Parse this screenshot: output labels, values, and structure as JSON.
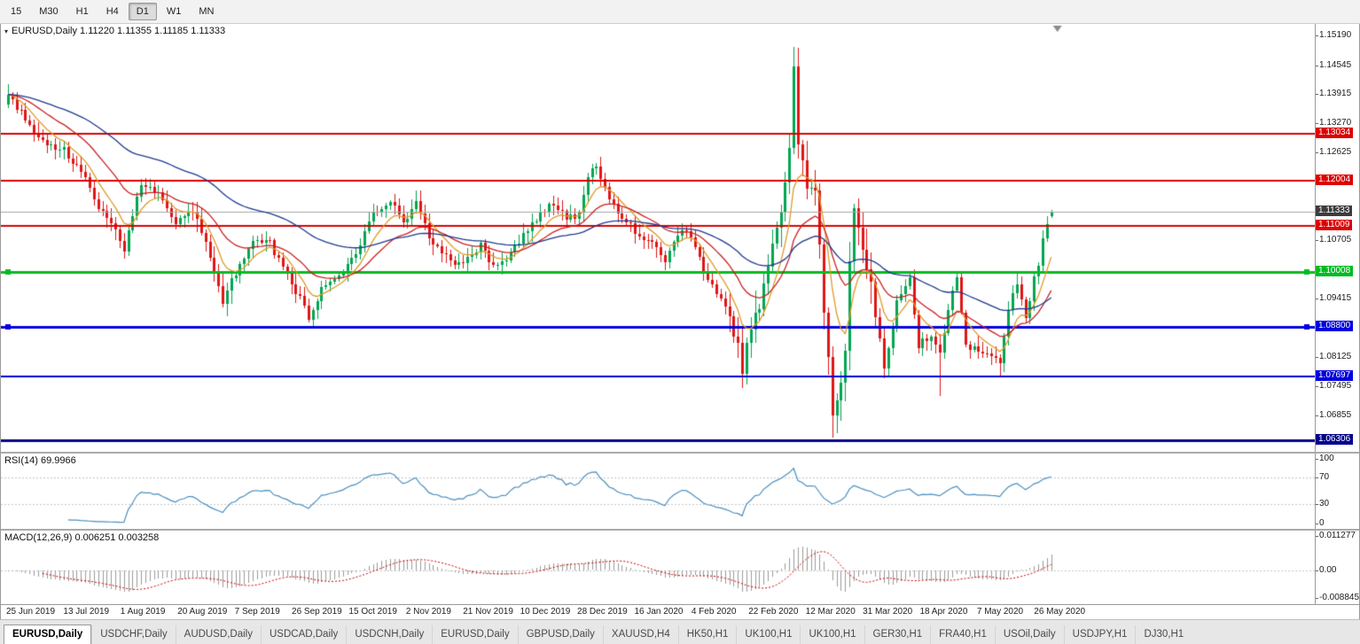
{
  "toolbar": {
    "timeframes": [
      "15",
      "M30",
      "H1",
      "H4",
      "D1",
      "W1",
      "MN"
    ],
    "active": "D1"
  },
  "main": {
    "title_text": "EURUSD,Daily 1.11220 1.11355 1.11185 1.11333"
  },
  "rsi_panel": {
    "label_text": "RSI(14) 69.9966"
  },
  "macd_panel": {
    "label_text": "MACD(12,26,9) 0.006251 0.003258"
  },
  "bottom_tabs": [
    "EURUSD,Daily",
    "USDCHF,Daily",
    "AUDUSD,Daily",
    "USDCAD,Daily",
    "USDCNH,Daily",
    "EURUSD,Daily",
    "GBPUSD,Daily",
    "XAUUSD,H4",
    "HK50,H1",
    "UK100,H1",
    "UK100,H1",
    "GER30,H1",
    "FRA40,H1",
    "USOil,Daily",
    "USDJPY,H1",
    "DJ30,H1"
  ],
  "active_tab_index": 0,
  "chart_data": {
    "type": "candlestick",
    "symbol": "EURUSD",
    "period": "Daily",
    "current_ohlc": {
      "open": 1.1122,
      "high": 1.11355,
      "low": 1.11185,
      "close": 1.11333
    },
    "candle_count": 244,
    "y_range": [
      1.0605,
      1.1545
    ],
    "y_ticks": [
      "1.15190",
      "1.14545",
      "1.13915",
      "1.13270",
      "1.12625",
      "1.10705",
      "1.09415",
      "1.08125",
      "1.07495",
      "1.06855"
    ],
    "x_labels": [
      "25 Jun 2019",
      "13 Jul 2019",
      "1 Aug 2019",
      "20 Aug 2019",
      "7 Sep 2019",
      "26 Sep 2019",
      "15 Oct 2019",
      "2 Nov 2019",
      "21 Nov 2019",
      "10 Dec 2019",
      "28 Dec 2019",
      "16 Jan 2020",
      "4 Feb 2020",
      "22 Feb 2020",
      "12 Mar 2020",
      "31 Mar 2020",
      "18 Apr 2020",
      "7 May 2020",
      "26 May 2020"
    ],
    "up_color": "#00a550",
    "down_color": "#e01515",
    "close_anchors": [
      [
        0,
        1.139
      ],
      [
        4,
        1.1335
      ],
      [
        9,
        1.1278
      ],
      [
        13,
        1.1268
      ],
      [
        17,
        1.1222
      ],
      [
        21,
        1.1145
      ],
      [
        26,
        1.1075
      ],
      [
        27,
        1.1048
      ],
      [
        29,
        1.112
      ],
      [
        31,
        1.1198
      ],
      [
        35,
        1.1172
      ],
      [
        39,
        1.1108
      ],
      [
        43,
        1.1138
      ],
      [
        47,
        1.1042
      ],
      [
        50,
        1.0936
      ],
      [
        53,
        1.1
      ],
      [
        57,
        1.1068
      ],
      [
        61,
        1.1062
      ],
      [
        65,
        1.0992
      ],
      [
        68,
        1.0942
      ],
      [
        70,
        1.0902
      ],
      [
        73,
        1.0962
      ],
      [
        77,
        1.0986
      ],
      [
        81,
        1.104
      ],
      [
        85,
        1.1134
      ],
      [
        89,
        1.1156
      ],
      [
        92,
        1.1112
      ],
      [
        95,
        1.115
      ],
      [
        98,
        1.1076
      ],
      [
        102,
        1.1032
      ],
      [
        106,
        1.1016
      ],
      [
        110,
        1.1058
      ],
      [
        113,
        1.1012
      ],
      [
        116,
        1.1026
      ],
      [
        120,
        1.1082
      ],
      [
        124,
        1.113
      ],
      [
        127,
        1.1152
      ],
      [
        130,
        1.1118
      ],
      [
        133,
        1.1122
      ],
      [
        135,
        1.1208
      ],
      [
        137,
        1.1236
      ],
      [
        140,
        1.1162
      ],
      [
        143,
        1.1122
      ],
      [
        146,
        1.109
      ],
      [
        150,
        1.106
      ],
      [
        153,
        1.1023
      ],
      [
        157,
        1.1094
      ],
      [
        160,
        1.106
      ],
      [
        163,
        1.098
      ],
      [
        166,
        1.0945
      ],
      [
        169,
        1.0872
      ],
      [
        171,
        1.0786
      ],
      [
        172,
        1.0846
      ],
      [
        175,
        1.092
      ],
      [
        177,
        1.1027
      ],
      [
        180,
        1.1138
      ],
      [
        182,
        1.1284
      ],
      [
        183,
        1.145
      ],
      [
        184,
        1.1281
      ],
      [
        186,
        1.1184
      ],
      [
        188,
        1.118
      ],
      [
        190,
        1.0917
      ],
      [
        192,
        1.069
      ],
      [
        193,
        1.0727
      ],
      [
        195,
        1.082
      ],
      [
        196,
        1.103
      ],
      [
        197,
        1.114
      ],
      [
        199,
        1.1048
      ],
      [
        201,
        1.0964
      ],
      [
        204,
        1.0791
      ],
      [
        207,
        1.093
      ],
      [
        210,
        1.098
      ],
      [
        212,
        1.084
      ],
      [
        215,
        1.0858
      ],
      [
        217,
        1.0821
      ],
      [
        220,
        1.0955
      ],
      [
        221,
        1.098
      ],
      [
        223,
        1.0838
      ],
      [
        225,
        1.0834
      ],
      [
        228,
        1.0818
      ],
      [
        231,
        1.0802
      ],
      [
        233,
        1.0913
      ],
      [
        235,
        1.098
      ],
      [
        237,
        1.09
      ],
      [
        239,
        1.0983
      ],
      [
        240,
        1.1006
      ],
      [
        241,
        1.1077
      ],
      [
        242,
        1.1101
      ],
      [
        243,
        1.11333
      ]
    ],
    "special_wicks": {
      "0": {
        "high": 1.1412
      },
      "137": {
        "high": 1.124
      },
      "183": {
        "high": 1.1495
      },
      "192": {
        "low": 1.0636
      },
      "217": {
        "low": 1.0727
      },
      "231": {
        "low": 1.0767
      }
    },
    "horizontal_levels": [
      {
        "label": "1.13034",
        "price": 1.13034,
        "color": "#dd0000",
        "width": 2
      },
      {
        "label": "1.12004",
        "price": 1.12004,
        "color": "#dd0000",
        "width": 2
      },
      {
        "label": "1.11333",
        "price": 1.11333,
        "color": "#a8a8a8",
        "badge_color": "#3c3c3c",
        "width": 1,
        "current": true
      },
      {
        "label": "1.11009",
        "price": 1.11009,
        "color": "#dd0000",
        "width": 2
      },
      {
        "label": "1.10008",
        "price": 1.10008,
        "color": "#00bb22",
        "width": 3,
        "handles": true
      },
      {
        "label": "1.08800",
        "price": 1.088,
        "color": "#0000dd",
        "width": 3,
        "handles": true
      },
      {
        "label": "1.07697",
        "price": 1.07697,
        "color": "#0000dd",
        "width": 2
      },
      {
        "label": "1.06306",
        "price": 1.06306,
        "color": "#00008b",
        "width": 3
      }
    ],
    "moving_averages": [
      {
        "period": 8,
        "color": "#e09a28"
      },
      {
        "period": 21,
        "color": "#cc2020"
      },
      {
        "period": 55,
        "color": "#1e3a8f"
      }
    ],
    "indicators": {
      "rsi": {
        "name": "RSI",
        "period": 14,
        "value": 69.9966,
        "color": "#4a8fc0",
        "levels": [
          {
            "label": "100",
            "value": 100
          },
          {
            "label": "70",
            "value": 70
          },
          {
            "label": "30",
            "value": 30
          },
          {
            "label": "0",
            "value": 0
          }
        ],
        "guide_levels": [
          70,
          30
        ]
      },
      "macd": {
        "name": "MACD",
        "params": "12,26,9",
        "macd_value": 0.006251,
        "signal_value": 0.003258,
        "histogram_color": "#9b9b9b",
        "signal_color": "#cc0000",
        "range": [
          -0.008845,
          0.011277
        ],
        "scale": [
          {
            "label": "0.011277",
            "value": 0.011277
          },
          {
            "label": "0.00",
            "value": 0
          },
          {
            "label": "-0.008845",
            "value": -0.008845
          }
        ]
      }
    }
  }
}
